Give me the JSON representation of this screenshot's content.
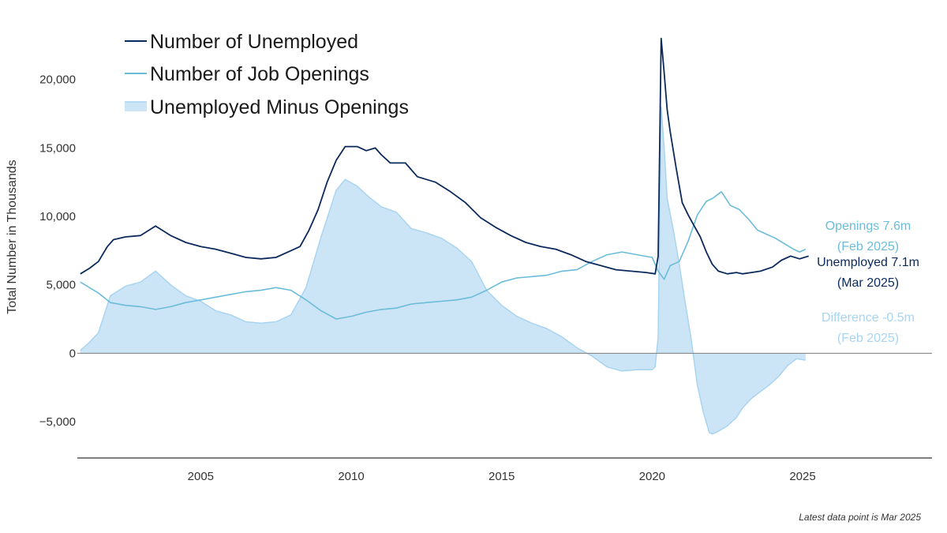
{
  "chart_data": {
    "type": "line",
    "ylabel": "Total Number in Thousands",
    "ylim": [
      -7650,
      23500
    ],
    "xlim": [
      2000.9,
      2029.3
    ],
    "yticks": [
      -5000,
      0,
      5000,
      10000,
      15000,
      20000
    ],
    "ytick_labels": [
      "−5,000",
      "0",
      "5,000",
      "10,000",
      "15,000",
      "20,000"
    ],
    "xticks": [
      2005,
      2010,
      2015,
      2020,
      2025
    ],
    "xtick_labels": [
      "2005",
      "2010",
      "2015",
      "2020",
      "2025"
    ],
    "zero_line": true,
    "legend_position": "top-left",
    "colors": {
      "unemployed": "#0b2a5b",
      "openings": "#6bbcd9",
      "difference_fill": "#cce5f6",
      "difference_line": "#a9d4f0",
      "axis": "#333333"
    },
    "series": [
      {
        "name": "Number of Unemployed",
        "key": "unemployed",
        "style": "line",
        "points": [
          [
            2001.0,
            5800
          ],
          [
            2001.3,
            6200
          ],
          [
            2001.6,
            6700
          ],
          [
            2001.9,
            7800
          ],
          [
            2002.1,
            8300
          ],
          [
            2002.5,
            8500
          ],
          [
            2003.0,
            8600
          ],
          [
            2003.5,
            9300
          ],
          [
            2004.0,
            8600
          ],
          [
            2004.5,
            8100
          ],
          [
            2005.0,
            7800
          ],
          [
            2005.5,
            7600
          ],
          [
            2006.0,
            7300
          ],
          [
            2006.5,
            7000
          ],
          [
            2007.0,
            6900
          ],
          [
            2007.5,
            7000
          ],
          [
            2008.0,
            7500
          ],
          [
            2008.3,
            7800
          ],
          [
            2008.6,
            9000
          ],
          [
            2008.9,
            10500
          ],
          [
            2009.2,
            12500
          ],
          [
            2009.5,
            14100
          ],
          [
            2009.8,
            15100
          ],
          [
            2010.2,
            15100
          ],
          [
            2010.5,
            14800
          ],
          [
            2010.8,
            15000
          ],
          [
            2011.0,
            14500
          ],
          [
            2011.3,
            13900
          ],
          [
            2011.8,
            13900
          ],
          [
            2012.2,
            12900
          ],
          [
            2012.8,
            12500
          ],
          [
            2013.3,
            11800
          ],
          [
            2013.8,
            11000
          ],
          [
            2014.3,
            9900
          ],
          [
            2014.8,
            9200
          ],
          [
            2015.3,
            8600
          ],
          [
            2015.8,
            8100
          ],
          [
            2016.3,
            7800
          ],
          [
            2016.8,
            7600
          ],
          [
            2017.3,
            7200
          ],
          [
            2017.8,
            6700
          ],
          [
            2018.3,
            6400
          ],
          [
            2018.8,
            6100
          ],
          [
            2019.3,
            6000
          ],
          [
            2019.8,
            5900
          ],
          [
            2020.1,
            5800
          ],
          [
            2020.2,
            7100
          ],
          [
            2020.3,
            23000
          ],
          [
            2020.4,
            20500
          ],
          [
            2020.5,
            17800
          ],
          [
            2020.6,
            16200
          ],
          [
            2020.8,
            13500
          ],
          [
            2021.0,
            11000
          ],
          [
            2021.2,
            10100
          ],
          [
            2021.4,
            9300
          ],
          [
            2021.6,
            8500
          ],
          [
            2021.8,
            7400
          ],
          [
            2022.0,
            6500
          ],
          [
            2022.2,
            6000
          ],
          [
            2022.5,
            5800
          ],
          [
            2022.8,
            5900
          ],
          [
            2023.0,
            5800
          ],
          [
            2023.3,
            5900
          ],
          [
            2023.6,
            6000
          ],
          [
            2024.0,
            6300
          ],
          [
            2024.3,
            6800
          ],
          [
            2024.6,
            7100
          ],
          [
            2024.9,
            6900
          ],
          [
            2025.2,
            7100
          ]
        ]
      },
      {
        "name": "Number of Job Openings",
        "key": "openings",
        "style": "line",
        "points": [
          [
            2001.0,
            5200
          ],
          [
            2001.3,
            4800
          ],
          [
            2001.6,
            4400
          ],
          [
            2002.0,
            3700
          ],
          [
            2002.5,
            3500
          ],
          [
            2003.0,
            3400
          ],
          [
            2003.5,
            3200
          ],
          [
            2004.0,
            3400
          ],
          [
            2004.5,
            3700
          ],
          [
            2005.0,
            3900
          ],
          [
            2005.5,
            4100
          ],
          [
            2006.0,
            4300
          ],
          [
            2006.5,
            4500
          ],
          [
            2007.0,
            4600
          ],
          [
            2007.5,
            4800
          ],
          [
            2008.0,
            4600
          ],
          [
            2008.5,
            3900
          ],
          [
            2009.0,
            3100
          ],
          [
            2009.5,
            2500
          ],
          [
            2010.0,
            2700
          ],
          [
            2010.5,
            3000
          ],
          [
            2011.0,
            3200
          ],
          [
            2011.5,
            3300
          ],
          [
            2012.0,
            3600
          ],
          [
            2012.5,
            3700
          ],
          [
            2013.0,
            3800
          ],
          [
            2013.5,
            3900
          ],
          [
            2014.0,
            4100
          ],
          [
            2014.5,
            4600
          ],
          [
            2015.0,
            5200
          ],
          [
            2015.5,
            5500
          ],
          [
            2016.0,
            5600
          ],
          [
            2016.5,
            5700
          ],
          [
            2017.0,
            6000
          ],
          [
            2017.5,
            6100
          ],
          [
            2018.0,
            6700
          ],
          [
            2018.5,
            7200
          ],
          [
            2019.0,
            7400
          ],
          [
            2019.5,
            7200
          ],
          [
            2020.0,
            7000
          ],
          [
            2020.2,
            6000
          ],
          [
            2020.4,
            5400
          ],
          [
            2020.6,
            6400
          ],
          [
            2020.9,
            6700
          ],
          [
            2021.2,
            8200
          ],
          [
            2021.5,
            10100
          ],
          [
            2021.8,
            11100
          ],
          [
            2022.0,
            11300
          ],
          [
            2022.3,
            11800
          ],
          [
            2022.6,
            10800
          ],
          [
            2022.9,
            10500
          ],
          [
            2023.2,
            9800
          ],
          [
            2023.5,
            9000
          ],
          [
            2023.8,
            8700
          ],
          [
            2024.1,
            8400
          ],
          [
            2024.4,
            8000
          ],
          [
            2024.7,
            7600
          ],
          [
            2024.9,
            7400
          ],
          [
            2025.1,
            7600
          ]
        ]
      },
      {
        "name": "Unemployed Minus Openings",
        "key": "difference",
        "style": "area",
        "points": [
          [
            2001.0,
            200
          ],
          [
            2001.3,
            800
          ],
          [
            2001.6,
            1500
          ],
          [
            2002.0,
            4200
          ],
          [
            2002.5,
            4900
          ],
          [
            2003.0,
            5200
          ],
          [
            2003.5,
            6000
          ],
          [
            2004.0,
            5000
          ],
          [
            2004.5,
            4200
          ],
          [
            2005.0,
            3800
          ],
          [
            2005.5,
            3100
          ],
          [
            2006.0,
            2800
          ],
          [
            2006.5,
            2300
          ],
          [
            2007.0,
            2200
          ],
          [
            2007.5,
            2300
          ],
          [
            2008.0,
            2800
          ],
          [
            2008.5,
            4800
          ],
          [
            2009.0,
            8500
          ],
          [
            2009.5,
            11900
          ],
          [
            2009.8,
            12700
          ],
          [
            2010.2,
            12200
          ],
          [
            2010.6,
            11400
          ],
          [
            2011.0,
            10700
          ],
          [
            2011.5,
            10300
          ],
          [
            2012.0,
            9100
          ],
          [
            2012.5,
            8800
          ],
          [
            2013.0,
            8400
          ],
          [
            2013.5,
            7700
          ],
          [
            2014.0,
            6700
          ],
          [
            2014.5,
            4600
          ],
          [
            2015.0,
            3500
          ],
          [
            2015.5,
            2700
          ],
          [
            2016.0,
            2200
          ],
          [
            2016.5,
            1800
          ],
          [
            2017.0,
            1200
          ],
          [
            2017.5,
            400
          ],
          [
            2018.0,
            -200
          ],
          [
            2018.5,
            -1000
          ],
          [
            2019.0,
            -1300
          ],
          [
            2019.5,
            -1200
          ],
          [
            2020.0,
            -1200
          ],
          [
            2020.1,
            -1000
          ],
          [
            2020.2,
            1200
          ],
          [
            2020.3,
            18000
          ],
          [
            2020.4,
            15000
          ],
          [
            2020.5,
            11300
          ],
          [
            2020.7,
            9100
          ],
          [
            2020.9,
            6500
          ],
          [
            2021.1,
            3700
          ],
          [
            2021.3,
            1000
          ],
          [
            2021.5,
            -2300
          ],
          [
            2021.7,
            -4300
          ],
          [
            2021.9,
            -5800
          ],
          [
            2022.0,
            -5900
          ],
          [
            2022.2,
            -5700
          ],
          [
            2022.5,
            -5300
          ],
          [
            2022.8,
            -4700
          ],
          [
            2023.0,
            -4000
          ],
          [
            2023.3,
            -3300
          ],
          [
            2023.6,
            -2800
          ],
          [
            2023.9,
            -2300
          ],
          [
            2024.2,
            -1700
          ],
          [
            2024.5,
            -900
          ],
          [
            2024.8,
            -400
          ],
          [
            2025.1,
            -500
          ]
        ]
      }
    ],
    "annotations": [
      {
        "key": "openings_line1",
        "text": "Openings 7.6m",
        "color": "#6bbcd9"
      },
      {
        "key": "openings_line2",
        "text": "(Feb 2025)",
        "color": "#6bbcd9"
      },
      {
        "key": "unemployed_line1",
        "text": "Unemployed 7.1m",
        "color": "#0b2a5b"
      },
      {
        "key": "unemployed_line2",
        "text": "(Mar 2025)",
        "color": "#0b2a5b"
      },
      {
        "key": "difference_line1",
        "text": "Difference -0.5m",
        "color": "#a9d4f0"
      },
      {
        "key": "difference_line2",
        "text": "(Feb 2025)",
        "color": "#a9d4f0"
      }
    ],
    "footnote": "Latest data point is Mar 2025"
  }
}
